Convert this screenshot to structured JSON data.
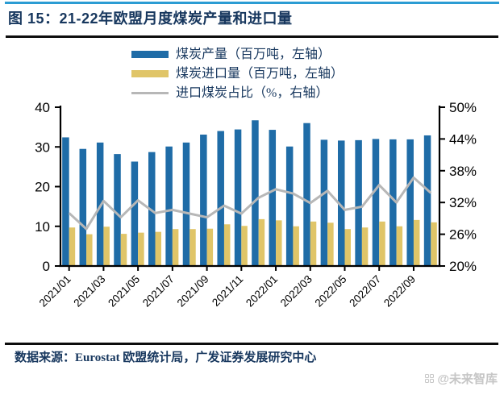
{
  "header": {
    "title": "图 15：21-22年欧盟月度煤炭产量和进口量",
    "title_color": "#17375E",
    "top_line_color": "#2B9CD3"
  },
  "legend": [
    {
      "label": "煤炭产量（百万吨，左轴）",
      "color": "#1F6CA7",
      "kind": "bar"
    },
    {
      "label": "煤炭进口量（百万吨，左轴）",
      "color": "#E0C568",
      "kind": "bar"
    },
    {
      "label": "进口煤炭占比（%，右轴）",
      "color": "#B7B7B7",
      "kind": "line"
    }
  ],
  "footer": {
    "source": "数据来源：Eurostat 欧盟统计局，广发证券发展研究中心",
    "watermark": "@未来智库",
    "watermark_color": "#c6c6c6"
  },
  "chart_data": {
    "type": "bar",
    "note": "grouped bars with overlay line; bars on left axis (million tonnes), line on right axis (%)",
    "categories": [
      "2021/01",
      "2021/02",
      "2021/03",
      "2021/04",
      "2021/05",
      "2021/06",
      "2021/07",
      "2021/08",
      "2021/09",
      "2021/10",
      "2021/11",
      "2021/12",
      "2022/01",
      "2022/02",
      "2022/03",
      "2022/04",
      "2022/05",
      "2022/06",
      "2022/07",
      "2022/08",
      "2022/09",
      "2022/10"
    ],
    "series": [
      {
        "name": "煤炭产量（百万吨，左轴）",
        "type": "bar",
        "axis": "left",
        "color": "#1F6CA7",
        "values": [
          32.4,
          29.5,
          31.1,
          28.2,
          26.3,
          28.7,
          30.1,
          31.1,
          33.1,
          34.0,
          34.4,
          36.7,
          34.3,
          30.1,
          36.0,
          31.8,
          31.6,
          31.7,
          32.0,
          31.9,
          31.9,
          32.9
        ]
      },
      {
        "name": "煤炭进口量（百万吨，左轴）",
        "type": "bar",
        "axis": "left",
        "color": "#E0C568",
        "values": [
          9.7,
          8.0,
          9.9,
          8.1,
          8.4,
          8.6,
          9.3,
          9.3,
          9.4,
          10.5,
          10.1,
          11.8,
          11.5,
          10.0,
          11.2,
          10.9,
          9.3,
          9.7,
          11.2,
          10.0,
          11.6,
          11.0
        ]
      },
      {
        "name": "进口煤炭占比（%，右轴）",
        "type": "line",
        "axis": "right",
        "color": "#B7B7B7",
        "values": [
          30.0,
          27.0,
          32.3,
          29.2,
          32.4,
          30.0,
          30.6,
          29.9,
          29.2,
          31.4,
          29.9,
          32.9,
          34.5,
          33.7,
          31.9,
          34.2,
          30.6,
          31.2,
          35.3,
          32.0,
          36.7,
          33.8
        ]
      }
    ],
    "left_axis": {
      "min": 0,
      "max": 40,
      "ticks": [
        0,
        10,
        20,
        30,
        40
      ],
      "suffix": ""
    },
    "right_axis": {
      "min": 20,
      "max": 50,
      "ticks": [
        20,
        26,
        32,
        38,
        44,
        50
      ],
      "suffix": "%"
    },
    "x_tick_every": 2,
    "grid": false,
    "legend_position": "top"
  }
}
